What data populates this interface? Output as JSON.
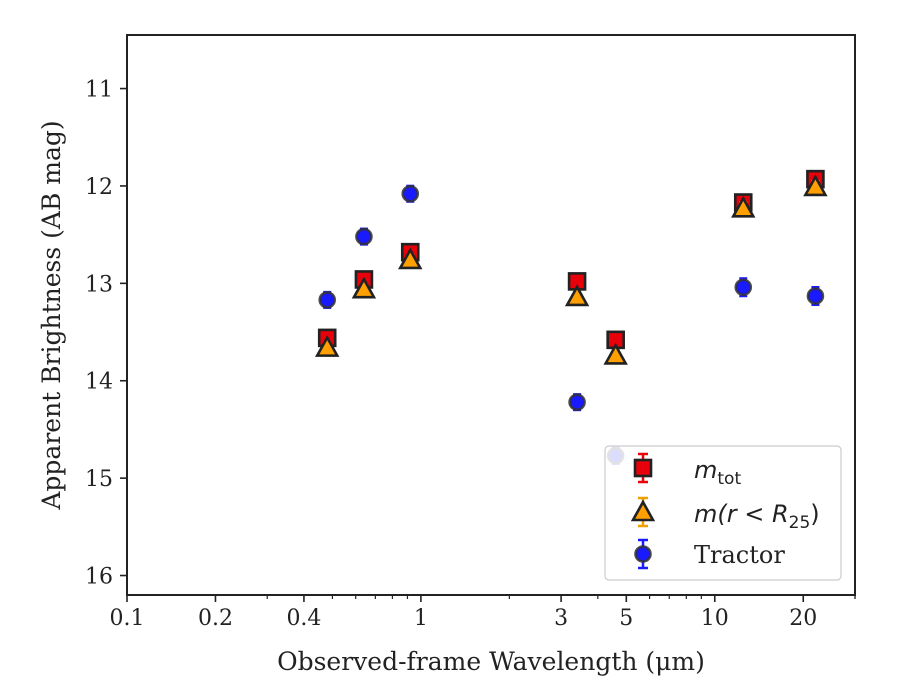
{
  "chart_data": {
    "type": "scatter",
    "xlabel": "Observed-frame Wavelength (μm)",
    "ylabel": "Apparent Brightness (AB mag)",
    "xscale": "log",
    "xlim": [
      0.1,
      30
    ],
    "ylim": [
      16.2,
      10.45
    ],
    "y_inverted": true,
    "xticks": [
      {
        "value": 0.1,
        "label": "0.1"
      },
      {
        "value": 0.2,
        "label": "0.2"
      },
      {
        "value": 0.4,
        "label": "0.4"
      },
      {
        "value": 1,
        "label": "1"
      },
      {
        "value": 3,
        "label": "3"
      },
      {
        "value": 5,
        "label": "5"
      },
      {
        "value": 10,
        "label": "10"
      },
      {
        "value": 20,
        "label": "20"
      }
    ],
    "yticks": [
      {
        "value": 11,
        "label": "11"
      },
      {
        "value": 12,
        "label": "12"
      },
      {
        "value": 13,
        "label": "13"
      },
      {
        "value": 14,
        "label": "14"
      },
      {
        "value": 15,
        "label": "15"
      },
      {
        "value": 16,
        "label": "16"
      }
    ],
    "legend_position": "lower right",
    "series": [
      {
        "name": "m_tot",
        "marker": "square",
        "color": "#e8000b",
        "x": [
          0.48,
          0.64,
          0.92,
          3.4,
          4.6,
          12.5,
          22.0
        ],
        "y": [
          13.56,
          12.96,
          12.68,
          12.98,
          13.58,
          12.17,
          11.93
        ],
        "err": [
          0.05,
          0.05,
          0.05,
          0.05,
          0.05,
          0.06,
          0.06
        ]
      },
      {
        "name": "m(r < R_25)",
        "marker": "triangle",
        "color": "#ff9f00",
        "x": [
          0.48,
          0.64,
          0.92,
          3.4,
          4.6,
          12.5,
          22.0
        ],
        "y": [
          13.66,
          13.06,
          12.76,
          13.14,
          13.74,
          12.23,
          12.01
        ],
        "err": [
          0.05,
          0.05,
          0.05,
          0.05,
          0.05,
          0.06,
          0.06
        ]
      },
      {
        "name": "Tractor",
        "marker": "circle",
        "color": "#1a1aff",
        "x": [
          0.48,
          0.64,
          0.92,
          3.4,
          4.6,
          12.5,
          22.0
        ],
        "y": [
          13.17,
          12.52,
          12.08,
          14.22,
          14.77,
          13.04,
          13.13
        ],
        "err": [
          0.08,
          0.08,
          0.08,
          0.08,
          0.08,
          0.09,
          0.09
        ]
      }
    ]
  },
  "legend": {
    "mtot_main": "m",
    "mtot_sub": "tot",
    "mr_prefix": "m(r < R",
    "mr_sub": "25",
    "mr_suffix": ")",
    "tractor": "Tractor"
  }
}
